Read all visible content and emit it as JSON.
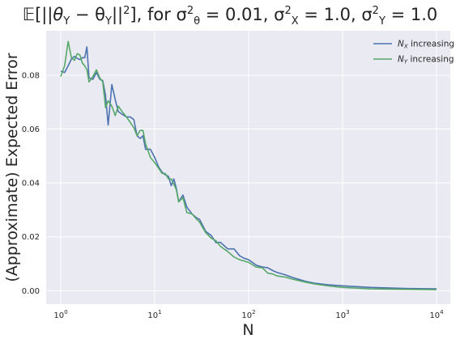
{
  "chart_data": {
    "type": "line",
    "title": {
      "pre": "𝔼[||",
      "theta": "θ",
      "subY": "Y",
      "mid": " − θ",
      "mid_sub": "Y",
      "post": "||",
      "post_sup": "2",
      "cond": "], for σ",
      "s1_sub": "θ",
      "s1_sup": "2",
      "s1_val": " = 0.01, σ",
      "s2_sub": "X",
      "s2_sup": "2",
      "s2_val": " = 1.0, σ",
      "s3_sub": "Y",
      "s3_sup": "2",
      "s3_val": " = 1.0"
    },
    "xlabel": "N",
    "ylabel": "(Approximate) Expected Error",
    "xscale": "log",
    "xlim": [
      0.7,
      14000
    ],
    "ylim": [
      -0.005,
      0.0965
    ],
    "xticks": [
      {
        "base": "10",
        "exp": "0",
        "value": 1
      },
      {
        "base": "10",
        "exp": "1",
        "value": 10
      },
      {
        "base": "10",
        "exp": "2",
        "value": 100
      },
      {
        "base": "10",
        "exp": "3",
        "value": 1000
      },
      {
        "base": "10",
        "exp": "4",
        "value": 10000
      }
    ],
    "yticks": [
      {
        "label": "0.00",
        "value": 0.0
      },
      {
        "label": "0.02",
        "value": 0.02
      },
      {
        "label": "0.04",
        "value": 0.04
      },
      {
        "label": "0.06",
        "value": 0.06
      },
      {
        "label": "0.08",
        "value": 0.08
      }
    ],
    "grid": true,
    "legend_position": "top-right",
    "series": [
      {
        "name": "N",
        "name_sub": "X",
        "name_rest": " increasing",
        "color": "#4c72b0",
        "x": [
          1,
          1.1,
          1.2,
          1.3,
          1.4,
          1.5,
          1.6,
          1.7,
          1.8,
          1.9,
          2.0,
          2.2,
          2.4,
          2.6,
          2.8,
          3.0,
          3.2,
          3.5,
          3.8,
          4.1,
          4.5,
          5.0,
          5.5,
          6.0,
          6.5,
          7.0,
          7.5,
          8.0,
          9.0,
          10,
          11,
          12,
          13,
          14,
          15,
          16,
          17,
          18,
          20,
          22,
          25,
          28,
          30,
          35,
          40,
          45,
          50,
          60,
          70,
          80,
          90,
          100,
          120,
          140,
          160,
          180,
          200,
          250,
          300,
          400,
          500,
          700,
          1000,
          2000,
          5000,
          10000
        ],
        "y": [
          0.0815,
          0.081,
          0.0835,
          0.086,
          0.087,
          0.0862,
          0.0858,
          0.0865,
          0.0865,
          0.0905,
          0.079,
          0.0785,
          0.081,
          0.0785,
          0.078,
          0.0725,
          0.0615,
          0.0765,
          0.071,
          0.0665,
          0.0655,
          0.0645,
          0.0645,
          0.0635,
          0.0575,
          0.0565,
          0.0575,
          0.0525,
          0.0525,
          0.0495,
          0.046,
          0.044,
          0.043,
          0.0425,
          0.039,
          0.0415,
          0.038,
          0.033,
          0.0355,
          0.031,
          0.0285,
          0.027,
          0.0265,
          0.022,
          0.0205,
          0.0178,
          0.018,
          0.0155,
          0.0155,
          0.013,
          0.012,
          0.0115,
          0.0095,
          0.0088,
          0.0085,
          0.0075,
          0.0068,
          0.0058,
          0.0048,
          0.0035,
          0.0028,
          0.0022,
          0.0018,
          0.0012,
          0.0008,
          0.0007
        ]
      },
      {
        "name": "N",
        "name_sub": "Y",
        "name_rest": " increasing",
        "color": "#55a868",
        "x": [
          1,
          1.1,
          1.2,
          1.3,
          1.4,
          1.5,
          1.6,
          1.7,
          1.8,
          1.9,
          2.0,
          2.2,
          2.4,
          2.6,
          2.8,
          3.0,
          3.2,
          3.5,
          3.8,
          4.1,
          4.5,
          5.0,
          5.5,
          6.0,
          6.5,
          7.0,
          7.5,
          8.0,
          9.0,
          10,
          11,
          12,
          13,
          14,
          15,
          16,
          17,
          18,
          20,
          22,
          25,
          28,
          30,
          35,
          40,
          45,
          50,
          60,
          70,
          80,
          90,
          100,
          120,
          140,
          160,
          180,
          200,
          250,
          300,
          400,
          500,
          700,
          1000,
          2000,
          5000,
          10000
        ],
        "y": [
          0.0795,
          0.0835,
          0.0925,
          0.0865,
          0.0855,
          0.088,
          0.0875,
          0.0845,
          0.0835,
          0.082,
          0.0775,
          0.0795,
          0.082,
          0.079,
          0.0775,
          0.068,
          0.0705,
          0.0685,
          0.065,
          0.0685,
          0.0665,
          0.0645,
          0.0625,
          0.0605,
          0.0575,
          0.0595,
          0.0595,
          0.0545,
          0.0495,
          0.0475,
          0.0455,
          0.0435,
          0.0435,
          0.0415,
          0.0415,
          0.0395,
          0.0375,
          0.033,
          0.0345,
          0.029,
          0.0285,
          0.0265,
          0.0255,
          0.0215,
          0.0195,
          0.0185,
          0.0165,
          0.0145,
          0.0125,
          0.0115,
          0.011,
          0.0105,
          0.0088,
          0.0085,
          0.0065,
          0.0062,
          0.0055,
          0.005,
          0.0042,
          0.0032,
          0.0025,
          0.0018,
          0.0012,
          0.0007,
          0.0005,
          0.0004
        ]
      }
    ]
  }
}
